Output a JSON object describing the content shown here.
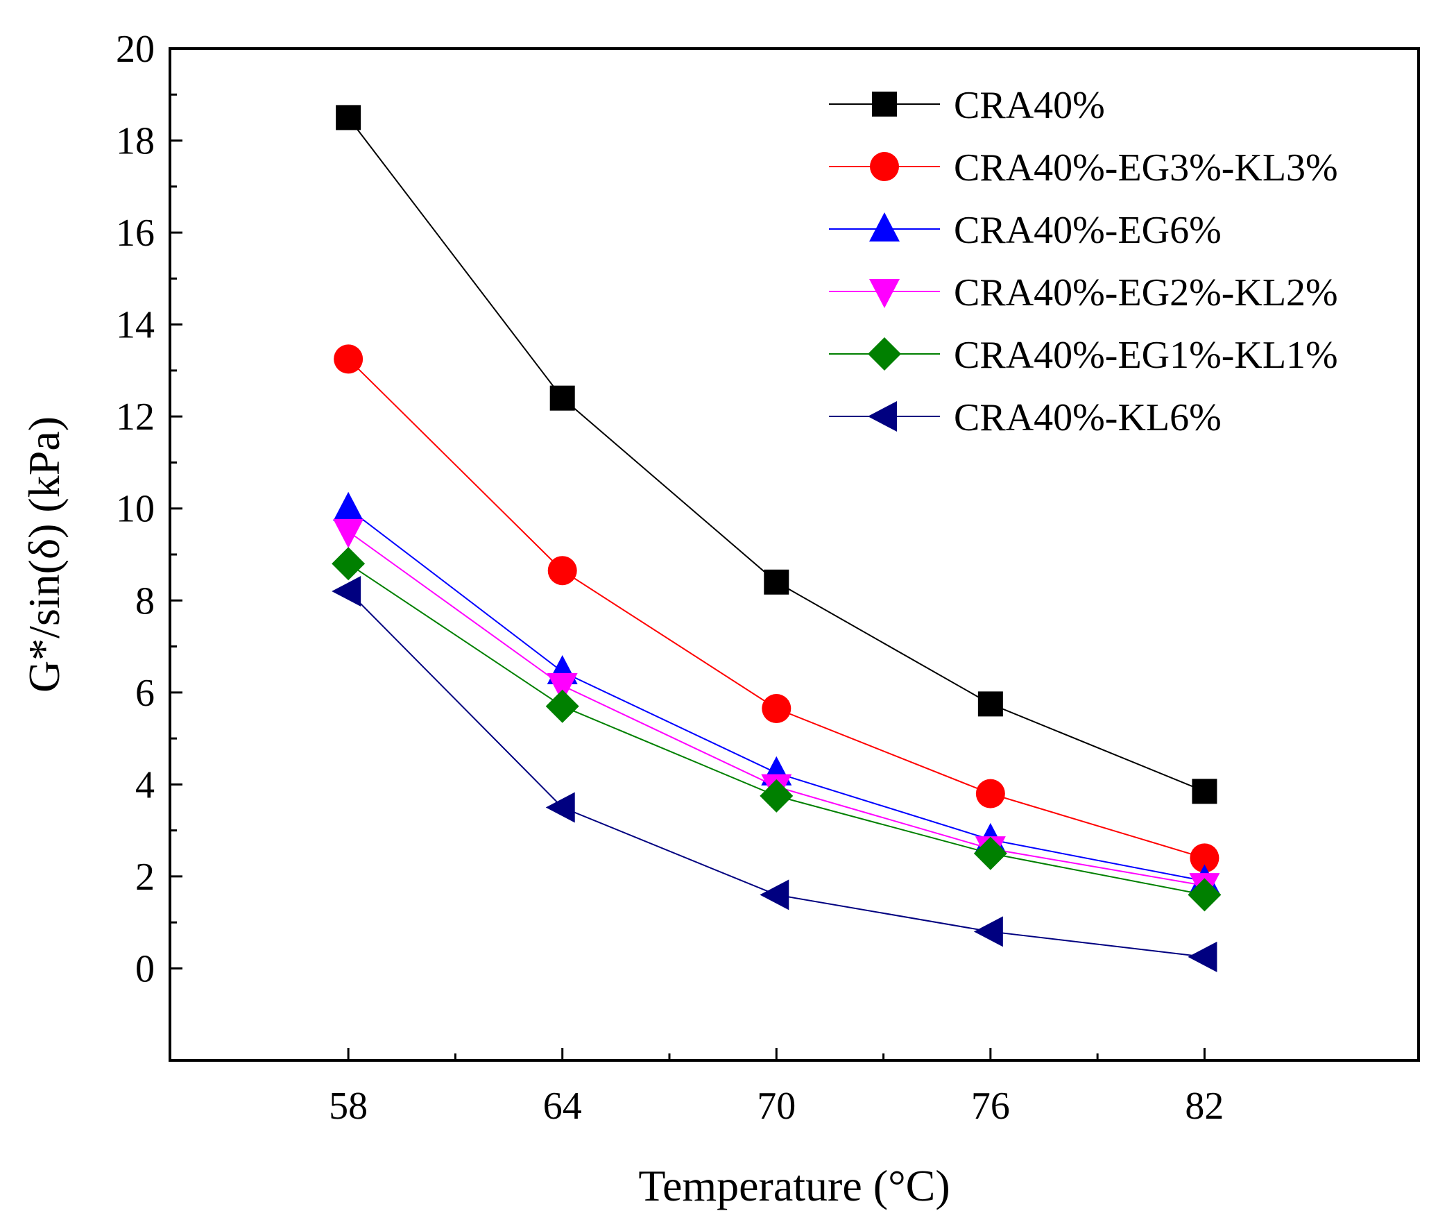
{
  "chart_data": {
    "type": "line",
    "title": "",
    "xlabel": "Temperature (°C)",
    "ylabel": "G*/sin(δ) (kPa)",
    "xlim": [
      53,
      88
    ],
    "ylim": [
      -2,
      20
    ],
    "x_ticks": [
      "58",
      "64",
      "70",
      "76",
      "82"
    ],
    "y_ticks": [
      "0",
      "2",
      "4",
      "6",
      "8",
      "10",
      "12",
      "14",
      "16",
      "18",
      "20"
    ],
    "grid": false,
    "legend_position": "top-right",
    "x": [
      58,
      64,
      70,
      76,
      82
    ],
    "series": [
      {
        "name": "CRA40%",
        "values": [
          18.5,
          12.4,
          8.4,
          5.75,
          3.85
        ],
        "color": "#000000",
        "marker": "square"
      },
      {
        "name": "CRA40%-EG3%-KL3%",
        "values": [
          13.25,
          8.65,
          5.65,
          3.8,
          2.4
        ],
        "color": "#ff0000",
        "marker": "circle"
      },
      {
        "name": "CRA40%-EG6%",
        "values": [
          10.0,
          6.45,
          4.25,
          2.8,
          1.9
        ],
        "color": "#0000ff",
        "marker": "triangle-up"
      },
      {
        "name": "CRA40%-EG2%-KL2%",
        "values": [
          9.5,
          6.15,
          3.95,
          2.6,
          1.8
        ],
        "color": "#ff00ff",
        "marker": "triangle-down"
      },
      {
        "name": "CRA40%-EG1%-KL1%",
        "values": [
          8.8,
          5.7,
          3.75,
          2.5,
          1.6
        ],
        "color": "#008000",
        "marker": "diamond"
      },
      {
        "name": "CRA40%-KL6%",
        "values": [
          8.2,
          3.5,
          1.6,
          0.8,
          0.25
        ],
        "color": "#000080",
        "marker": "triangle-left"
      }
    ]
  }
}
